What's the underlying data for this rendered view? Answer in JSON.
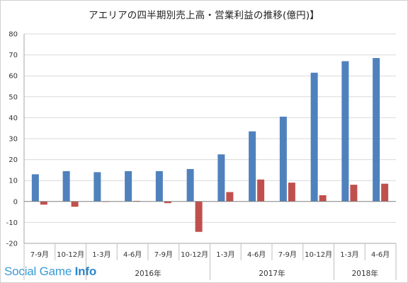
{
  "chart_data": {
    "type": "bar",
    "title": "アエリアの四半期別売上高・営業利益の推移(億円)】",
    "categories": [
      "7-9月",
      "10-12月",
      "1-3月",
      "4-6月",
      "7-9月",
      "10-12月",
      "1-3月",
      "4-6月",
      "7-9月",
      "10-12月",
      "1-3月",
      "4-6月"
    ],
    "groups": [
      {
        "label": "",
        "start": 0,
        "end": 1
      },
      {
        "label": "2016年",
        "start": 2,
        "end": 5
      },
      {
        "label": "2017年",
        "start": 6,
        "end": 9
      },
      {
        "label": "2018年",
        "start": 10,
        "end": 11
      }
    ],
    "series": [
      {
        "values": [
          13.0,
          14.5,
          14.0,
          14.5,
          14.5,
          15.5,
          22.5,
          33.5,
          40.5,
          61.5,
          67.0,
          68.5
        ],
        "color": "#4f81bd"
      },
      {
        "values": [
          -1.5,
          -2.5,
          0.0,
          0.3,
          -0.8,
          -14.5,
          4.5,
          10.5,
          9.0,
          3.0,
          8.0,
          8.5
        ],
        "color": "#c0504d"
      }
    ],
    "yticks": [
      80,
      70,
      60,
      50,
      40,
      30,
      20,
      10,
      0,
      -10,
      -20
    ],
    "ylim": [
      -20,
      80
    ],
    "grid": true,
    "legend": "none",
    "xlabel": "",
    "ylabel": ""
  },
  "watermark": {
    "text_regular": "Social Game ",
    "text_bold": "Info"
  }
}
